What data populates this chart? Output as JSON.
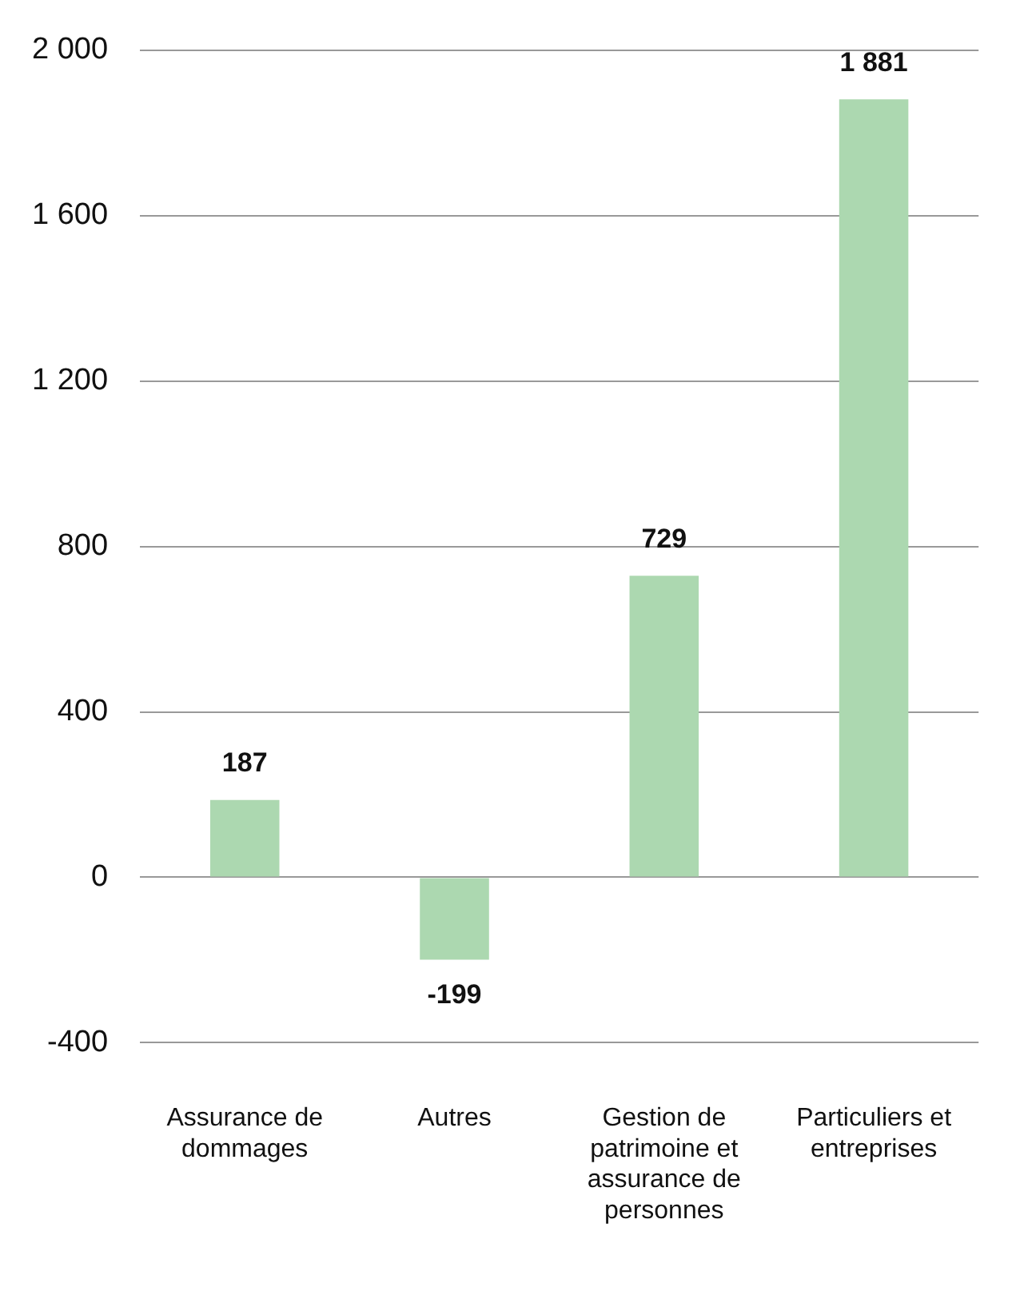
{
  "chart_data": {
    "type": "bar",
    "categories": [
      "Assurance de dommages",
      "Autres",
      "Gestion de patrimoine et assurance de personnes",
      "Particuliers et entreprises"
    ],
    "values": [
      187,
      -199,
      729,
      1881
    ],
    "value_labels": [
      "187",
      "-199",
      "729",
      "1 881"
    ],
    "color": "#acd8b0",
    "ylim": [
      -400,
      2000
    ],
    "yticks": [
      {
        "value": -400,
        "label": "-400"
      },
      0,
      400,
      800,
      {
        "value": 1200,
        "label": "1 200"
      },
      {
        "value": 1600,
        "label": "1 600"
      },
      {
        "value": 2000,
        "label": "2 000"
      }
    ],
    "grid": "y"
  }
}
